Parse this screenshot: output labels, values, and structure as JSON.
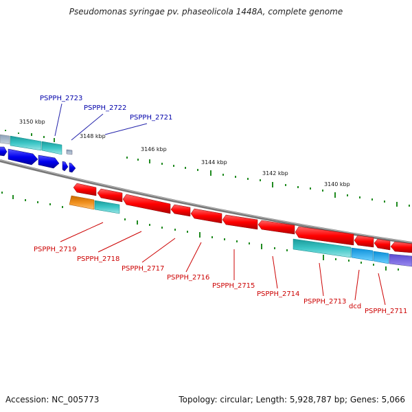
{
  "title": "Pseudomonas syringae pv. phaseolicola 1448A, complete genome",
  "footer": {
    "accession": "Accession: NC_005773",
    "topology": "Topology: circular; Length: 5,928,787 bp; Genes: 5,066"
  },
  "colors": {
    "forward_gene": "#0000ee",
    "reverse_gene": "#ff0000",
    "rna_gene": "#3cc6c6",
    "other_gene": "#f0901e",
    "backbone": "#888888",
    "ticks": "#228b22",
    "forward_label": "#0000aa",
    "reverse_label": "#cc0000"
  },
  "scale_labels": [
    "3150 kbp",
    "3148 kbp",
    "3146 kbp",
    "3144 kbp",
    "3142 kbp",
    "3140 kbp"
  ],
  "top_labels": [
    "PSPPH_2723",
    "PSPPH_2722",
    "PSPPH_2721"
  ],
  "bottom_labels": [
    "PSPPH_2719",
    "PSPPH_2718",
    "PSPPH_2717",
    "PSPPH_2716",
    "PSPPH_2715",
    "PSPPH_2714",
    "PSPPH_2713",
    "dcd",
    "PSPPH_2711"
  ]
}
